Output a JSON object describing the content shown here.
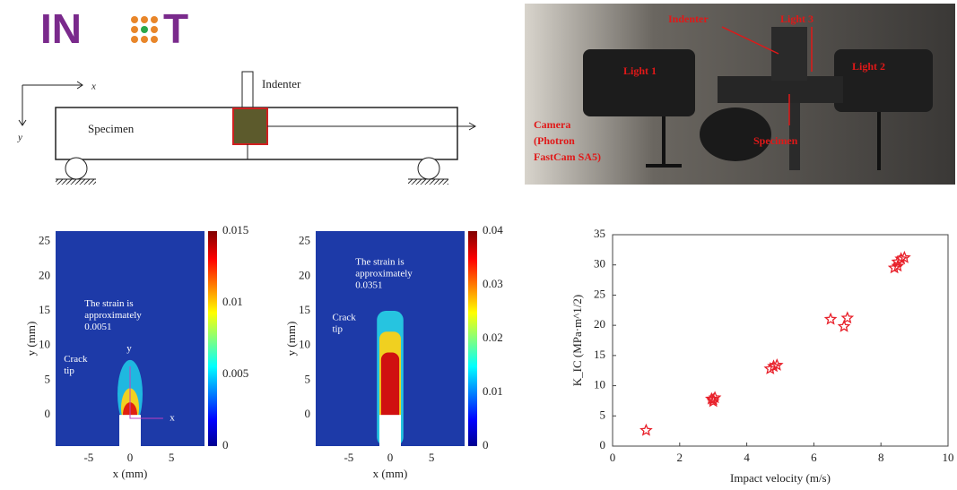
{
  "logo": {
    "left": "IN",
    "right": "T"
  },
  "schematic": {
    "x_axis": "x",
    "y_axis": "y",
    "indenter": "Indenter",
    "specimen": "Specimen"
  },
  "photo": {
    "indenter": "Indenter",
    "light3": "Light 3",
    "light1": "Light 1",
    "light2": "Light 2",
    "camera_lines": [
      "Camera",
      "(Photron",
      "FastCam SA5)"
    ],
    "specimen": "Specimen"
  },
  "strain_maps": [
    {
      "xlabel": "x (mm)",
      "ylabel": "y (mm)",
      "xlim": [
        -9,
        9
      ],
      "ylim": [
        -4.5,
        26.5
      ],
      "xticks": [
        -5,
        0,
        5
      ],
      "yticks": [
        0,
        5,
        10,
        15,
        20,
        25
      ],
      "clim": [
        0,
        0.015
      ],
      "cticks": [
        0,
        0.005,
        0.01,
        0.015
      ],
      "annotation_lines": [
        "The strain is",
        "approximately",
        "0.0051"
      ],
      "tip_lines": [
        "Crack",
        "tip"
      ],
      "local_x": "x",
      "local_y": "y"
    },
    {
      "xlabel": "x (mm)",
      "ylabel": "y (mm)",
      "xlim": [
        -9,
        9
      ],
      "ylim": [
        -4.5,
        26.5
      ],
      "xticks": [
        -5,
        0,
        5
      ],
      "yticks": [
        0,
        5,
        10,
        15,
        20,
        25
      ],
      "clim": [
        0,
        0.04
      ],
      "cticks": [
        0,
        0.01,
        0.02,
        0.03,
        0.04
      ],
      "annotation_lines": [
        "The strain is",
        "approximately",
        "0.0351"
      ],
      "tip_lines": [
        "Crack",
        "tip"
      ]
    }
  ],
  "chart_data": {
    "type": "scatter",
    "xlabel": "Impact velocity (m/s)",
    "ylabel": "K_IC (MPa·m^1/2)",
    "x": [
      1,
      2.95,
      3,
      3.05,
      3,
      4.7,
      4.8,
      4.9,
      6.5,
      6.9,
      7,
      8.4,
      8.5,
      8.6,
      8.7,
      8.5
    ],
    "values": [
      2.6,
      7.8,
      7.4,
      8,
      7.7,
      12.8,
      13.2,
      13.4,
      21,
      19.8,
      21.2,
      29.5,
      30.5,
      31,
      31.2,
      29.8
    ],
    "color": "#e8202a",
    "xlim": [
      0,
      10
    ],
    "ylim": [
      0,
      35
    ],
    "xticks": [
      0,
      2,
      4,
      6,
      8,
      10
    ],
    "yticks": [
      0,
      5,
      10,
      15,
      20,
      25,
      30,
      35
    ]
  }
}
